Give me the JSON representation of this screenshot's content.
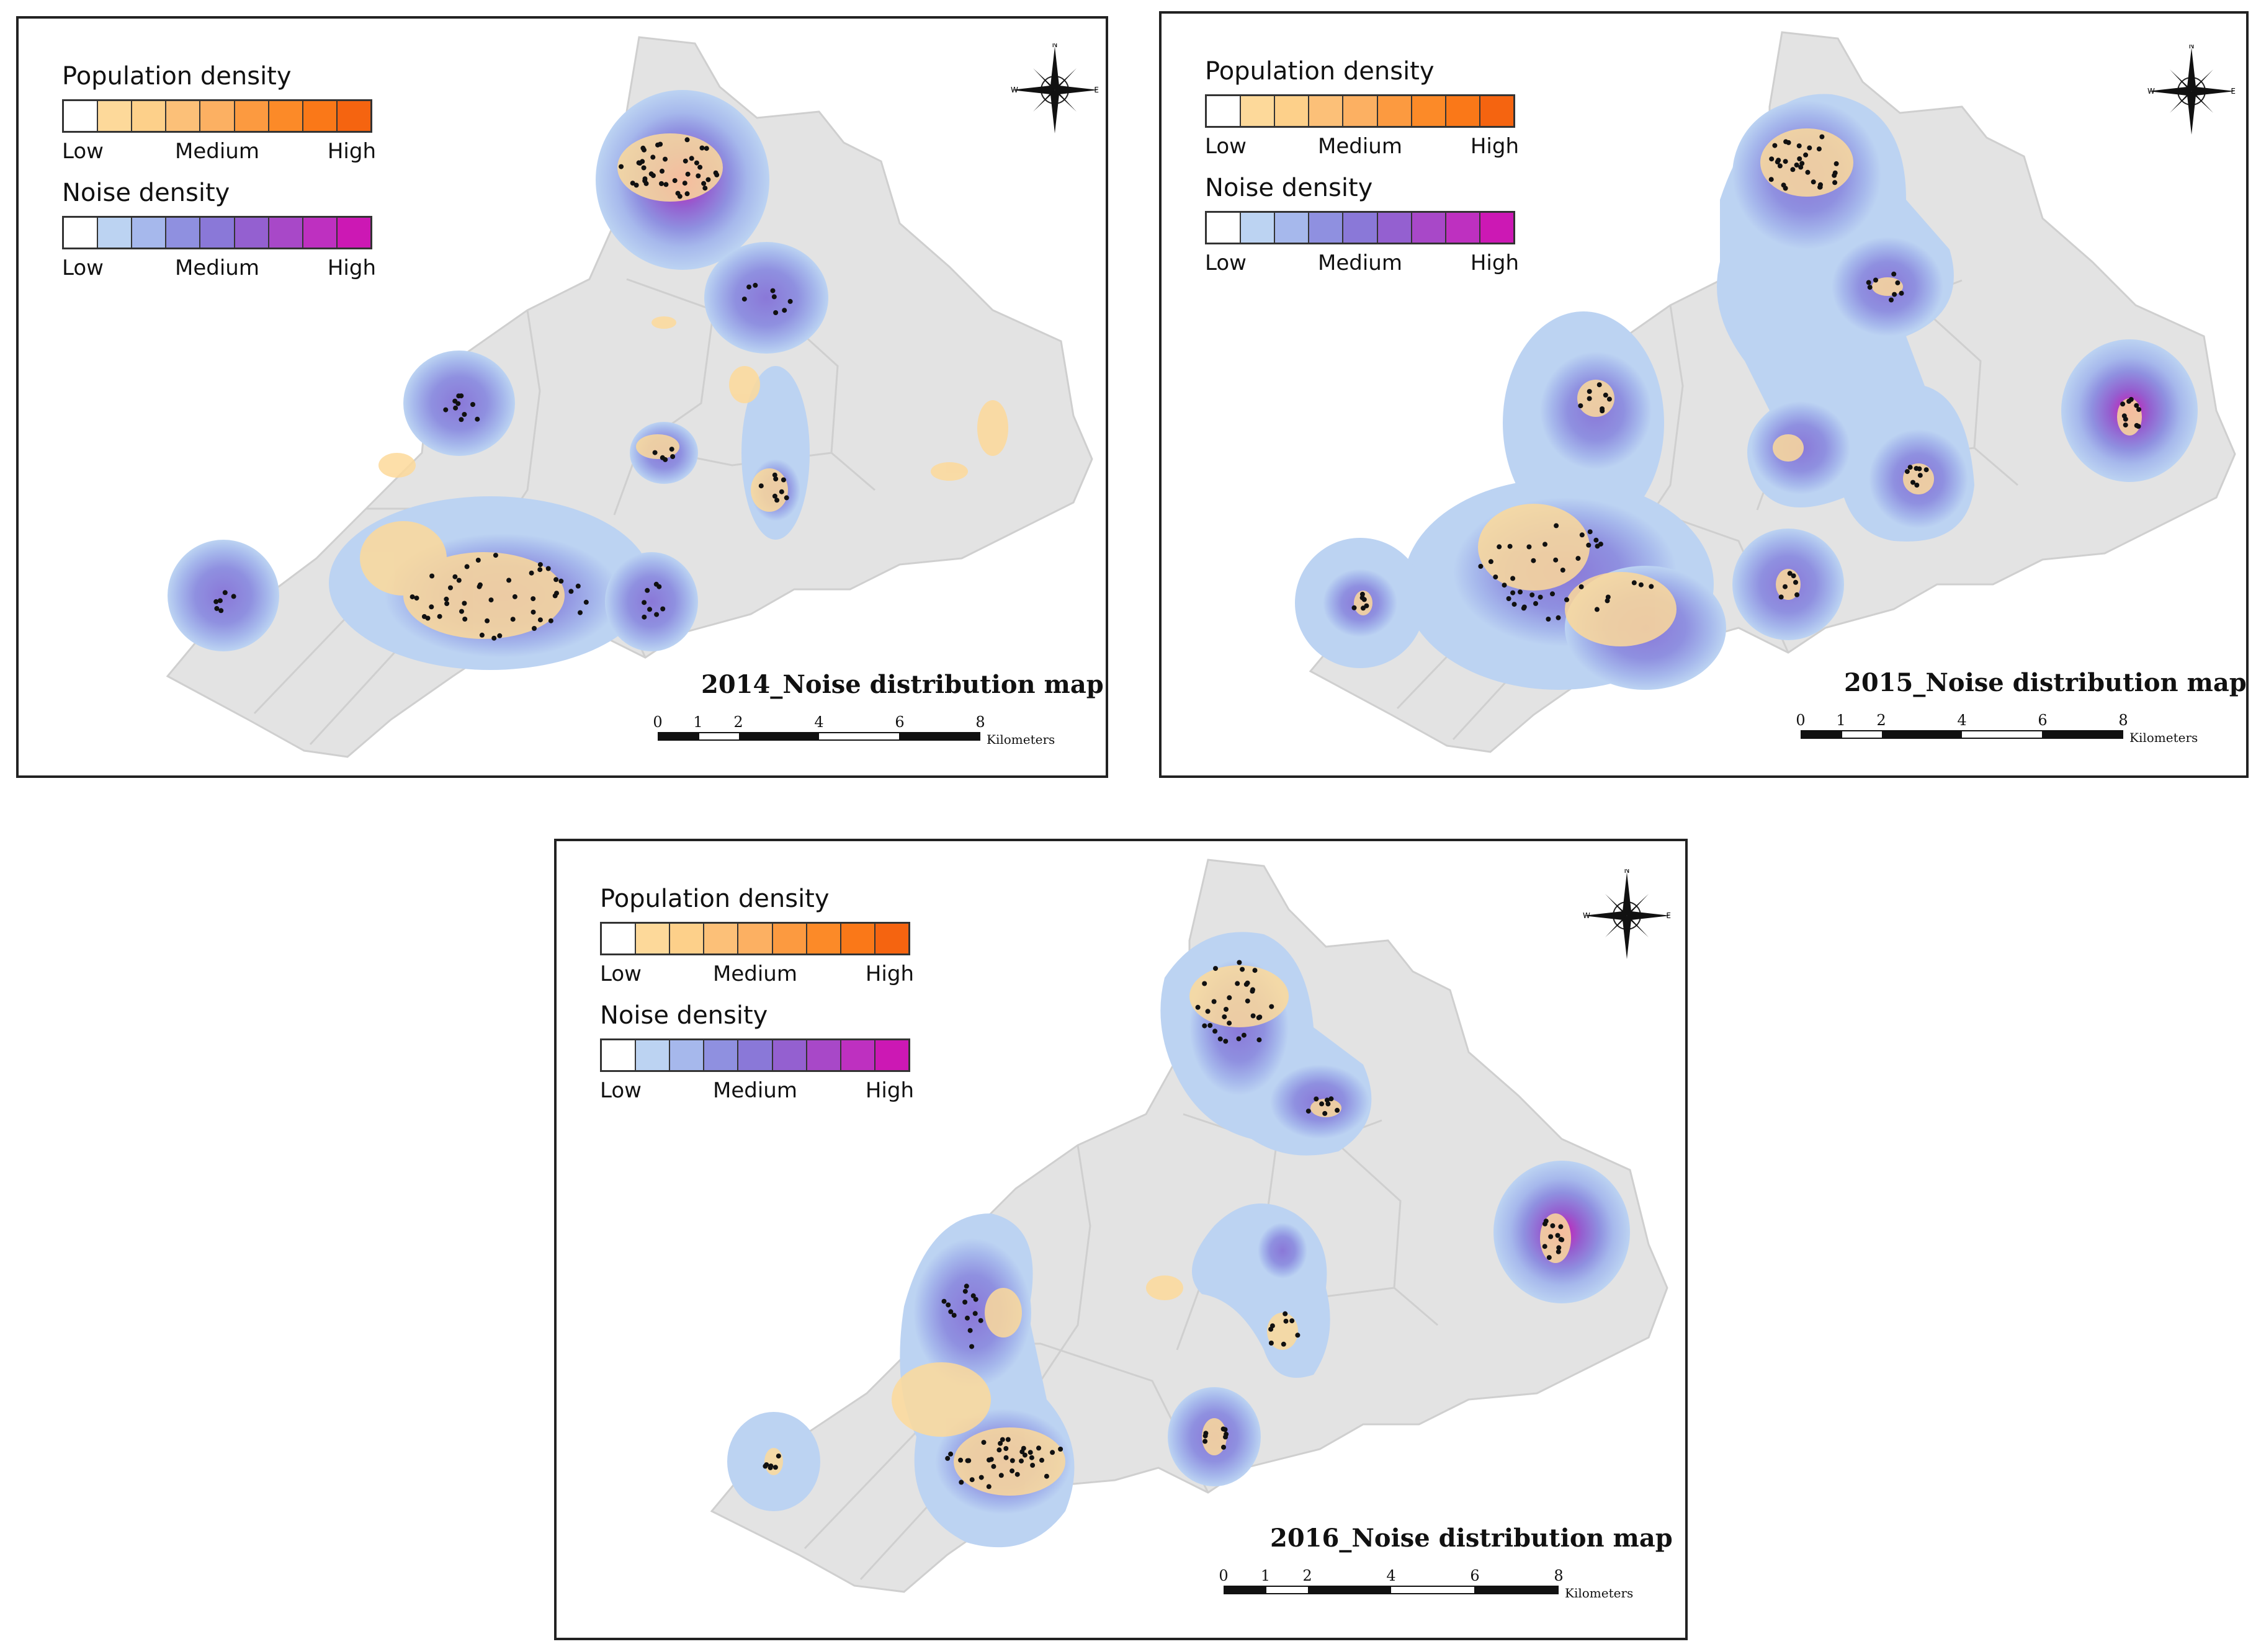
{
  "legend": {
    "population_title": "Population density",
    "noise_title": "Noise density",
    "low": "Low",
    "medium": "Medium",
    "high": "High",
    "population_colors": [
      "#ffffff",
      "#fdd99a",
      "#fdd08a",
      "#fcc078",
      "#fcb062",
      "#fc9a40",
      "#fc8a28",
      "#fa7818",
      "#f56410"
    ],
    "noise_colors": [
      "#ffffff",
      "#bcd3f2",
      "#a6b8ec",
      "#8f90e0",
      "#8a78d8",
      "#9460d0",
      "#a848c8",
      "#be30c0",
      "#cc18b4"
    ]
  },
  "scale": {
    "ticks": [
      "0",
      "1",
      "2",
      "4",
      "6",
      "8"
    ],
    "unit": "Kilometers"
  },
  "compass": {
    "north": "N",
    "south": "S",
    "east": "E",
    "west": "W"
  },
  "panels": [
    {
      "year": "2014",
      "title": "2014_Noise distribution map"
    },
    {
      "year": "2015",
      "title": "2015_Noise distribution map"
    },
    {
      "year": "2016",
      "title": "2016_Noise distribution map"
    }
  ]
}
